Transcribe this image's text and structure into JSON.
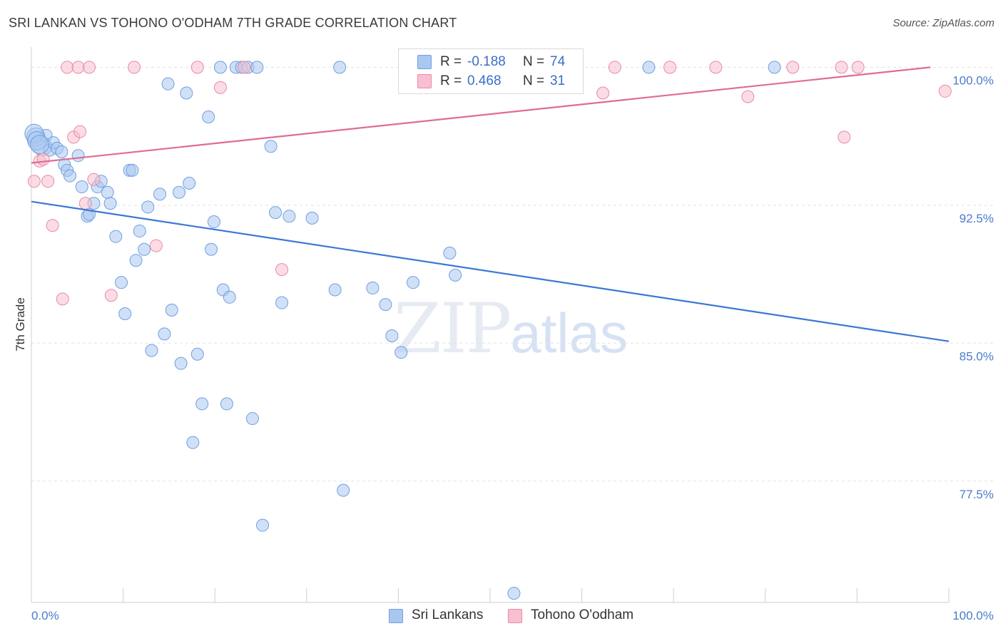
{
  "title": "SRI LANKAN VS TOHONO O'ODHAM 7TH GRADE CORRELATION CHART",
  "source": "Source: ZipAtlas.com",
  "watermark": {
    "zip": "ZIP",
    "atlas": "atlas"
  },
  "legend": {
    "rows": [
      {
        "label": "R =",
        "r": "-0.188",
        "n_label": "N =",
        "n": "74",
        "color": "#a9c8f0",
        "border": "#6f9fe0"
      },
      {
        "label": "R =",
        "r": "0.468",
        "n_label": "N =",
        "n": "31",
        "color": "#f8bfd0",
        "border": "#e88aa6"
      }
    ]
  },
  "bottom_legend": [
    {
      "label": "Sri Lankans",
      "color": "#a9c8f0",
      "border": "#6f9fe0"
    },
    {
      "label": "Tohono O'odham",
      "color": "#f8bfd0",
      "border": "#e88aa6"
    }
  ],
  "chart_data": {
    "type": "scatter",
    "title": "SRI LANKAN VS TOHONO O'ODHAM 7TH GRADE CORRELATION CHART",
    "xlabel": "",
    "ylabel": "7th Grade",
    "xlim": [
      0,
      100
    ],
    "ylim": [
      70.9,
      101.1
    ],
    "x_ticks": [
      {
        "value": 0,
        "label": "0.0%"
      },
      {
        "value": 100,
        "label": "100.0%"
      }
    ],
    "y_ticks": [
      {
        "value": 100,
        "label": "100.0%"
      },
      {
        "value": 92.5,
        "label": "92.5%"
      },
      {
        "value": 85,
        "label": "85.0%"
      },
      {
        "value": 77.5,
        "label": "77.5%"
      }
    ],
    "grid": true,
    "series": [
      {
        "name": "Sri Lankans",
        "color": "#6f9fe0",
        "fill": "#a9c8f0",
        "trend": {
          "x": [
            0,
            100
          ],
          "y": [
            92.7,
            85.1
          ],
          "color": "#3a78d4"
        },
        "points": [
          [
            0.5,
            96.2
          ],
          [
            1.2,
            95.7
          ],
          [
            1.6,
            96.3
          ],
          [
            2.0,
            95.5
          ],
          [
            2.4,
            95.9
          ],
          [
            2.8,
            95.6
          ],
          [
            3.3,
            95.4
          ],
          [
            3.6,
            94.7
          ],
          [
            3.9,
            94.4
          ],
          [
            4.2,
            94.1
          ],
          [
            5.1,
            95.2
          ],
          [
            5.5,
            93.5
          ],
          [
            6.1,
            91.9
          ],
          [
            6.3,
            92.0
          ],
          [
            6.8,
            92.6
          ],
          [
            7.2,
            93.5
          ],
          [
            7.6,
            93.8
          ],
          [
            8.3,
            93.2
          ],
          [
            8.6,
            92.6
          ],
          [
            9.2,
            90.8
          ],
          [
            9.8,
            88.3
          ],
          [
            10.2,
            86.6
          ],
          [
            10.7,
            94.4
          ],
          [
            11.0,
            94.4
          ],
          [
            11.4,
            89.5
          ],
          [
            11.8,
            91.1
          ],
          [
            12.3,
            90.1
          ],
          [
            12.7,
            92.4
          ],
          [
            13.1,
            84.6
          ],
          [
            14.0,
            93.1
          ],
          [
            14.5,
            85.5
          ],
          [
            14.9,
            99.1
          ],
          [
            15.3,
            86.8
          ],
          [
            16.1,
            93.2
          ],
          [
            16.3,
            83.9
          ],
          [
            16.9,
            98.6
          ],
          [
            17.2,
            93.7
          ],
          [
            17.6,
            79.6
          ],
          [
            18.1,
            84.4
          ],
          [
            18.6,
            81.7
          ],
          [
            19.3,
            97.3
          ],
          [
            19.6,
            90.1
          ],
          [
            19.9,
            91.6
          ],
          [
            20.6,
            100.0
          ],
          [
            20.9,
            87.9
          ],
          [
            21.3,
            81.7
          ],
          [
            21.6,
            87.5
          ],
          [
            22.3,
            100.0
          ],
          [
            22.9,
            100.0
          ],
          [
            23.6,
            100.0
          ],
          [
            24.1,
            80.9
          ],
          [
            24.6,
            100.0
          ],
          [
            25.2,
            75.1
          ],
          [
            26.1,
            95.7
          ],
          [
            26.6,
            92.1
          ],
          [
            27.3,
            87.2
          ],
          [
            28.1,
            91.9
          ],
          [
            30.6,
            91.8
          ],
          [
            33.1,
            87.9
          ],
          [
            33.6,
            100.0
          ],
          [
            34.0,
            77.0
          ],
          [
            37.2,
            88.0
          ],
          [
            38.6,
            87.1
          ],
          [
            39.3,
            85.4
          ],
          [
            40.3,
            84.5
          ],
          [
            41.6,
            88.3
          ],
          [
            45.6,
            89.9
          ],
          [
            46.2,
            88.7
          ],
          [
            52.6,
            71.4
          ],
          [
            67.3,
            100.0
          ],
          [
            81.0,
            100.0
          ],
          [
            0.3,
            96.4
          ],
          [
            0.6,
            96.0
          ],
          [
            0.9,
            95.8
          ]
        ]
      },
      {
        "name": "Tohono O'odham",
        "color": "#e88aa6",
        "fill": "#f8bfd0",
        "trend": {
          "x": [
            0,
            98
          ],
          "y": [
            94.8,
            100.0
          ],
          "color": "#e06c93"
        },
        "points": [
          [
            0.3,
            93.8
          ],
          [
            0.9,
            94.9
          ],
          [
            1.3,
            95.0
          ],
          [
            1.8,
            93.8
          ],
          [
            2.3,
            91.4
          ],
          [
            3.4,
            87.4
          ],
          [
            3.9,
            100.0
          ],
          [
            4.6,
            96.2
          ],
          [
            5.1,
            100.0
          ],
          [
            5.3,
            96.5
          ],
          [
            5.9,
            92.6
          ],
          [
            6.3,
            100.0
          ],
          [
            6.8,
            93.9
          ],
          [
            8.7,
            87.6
          ],
          [
            11.2,
            100.0
          ],
          [
            13.6,
            90.3
          ],
          [
            18.1,
            100.0
          ],
          [
            20.6,
            98.9
          ],
          [
            23.2,
            100.0
          ],
          [
            27.3,
            89.0
          ],
          [
            47.3,
            100.0
          ],
          [
            62.3,
            98.6
          ],
          [
            69.6,
            100.0
          ],
          [
            74.6,
            100.0
          ],
          [
            78.1,
            98.4
          ],
          [
            83.0,
            100.0
          ],
          [
            88.3,
            100.0
          ],
          [
            88.6,
            96.2
          ],
          [
            90.1,
            100.0
          ],
          [
            99.6,
            98.7
          ],
          [
            63.6,
            100.0
          ]
        ]
      }
    ]
  }
}
